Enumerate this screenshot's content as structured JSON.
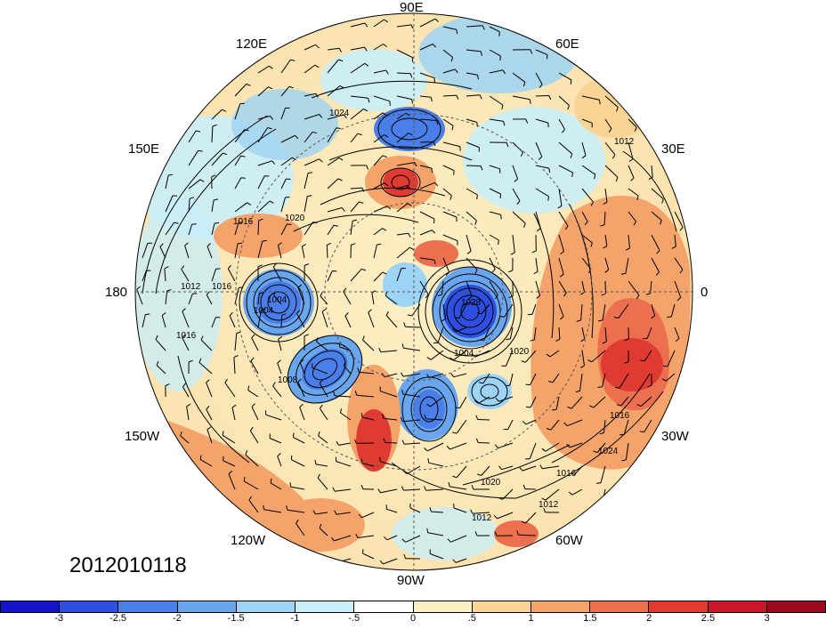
{
  "map": {
    "timestamp": "2012010118",
    "longitude_labels": [
      "90E",
      "60E",
      "30E",
      "0",
      "30W",
      "60W",
      "90W",
      "120W",
      "150W",
      "180",
      "150E",
      "120E"
    ],
    "isobar_labels": [
      "1024",
      "1012",
      "1020",
      "1016",
      "1004",
      "1012",
      "1016",
      "1020",
      "1024",
      "1016",
      "1016",
      "1020",
      "1012",
      "1012",
      "1016",
      "1028",
      "1004",
      "1008",
      "1004"
    ]
  },
  "colorbar": {
    "tick_labels": [
      "-3",
      "-2.5",
      "-2",
      "-1.5",
      "-1",
      "-.5",
      "0",
      ".5",
      "1",
      "1.5",
      "2",
      "2.5",
      "3"
    ],
    "colors": [
      "#1414c8",
      "#2e4fe0",
      "#4a7ee8",
      "#6aa6ee",
      "#9dd3f4",
      "#c9eef8",
      "#ffffff",
      "#fcefc4",
      "#f9d495",
      "#f4a46a",
      "#ec6f50",
      "#e03b33",
      "#c8182a",
      "#9c0a1e"
    ]
  },
  "colors": {
    "accent_warm": "#e03b33",
    "accent_cold": "#2e4fe0"
  }
}
